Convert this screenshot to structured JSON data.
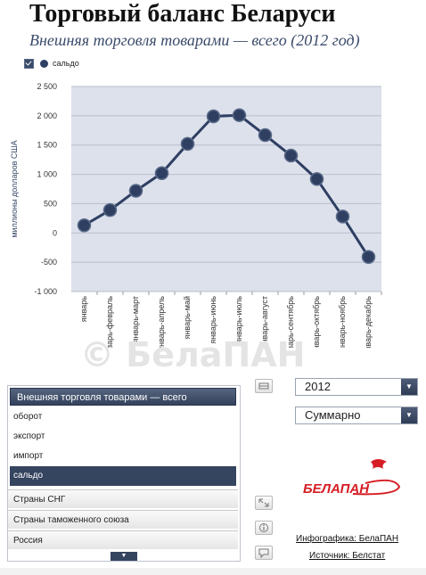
{
  "title": "Торговый баланс Беларуси",
  "subtitle": "Внешняя торговля товарами — всего (2012 год)",
  "legend": {
    "label": "сальдо",
    "checked": true
  },
  "chart_data": {
    "type": "line",
    "ylabel": "миллионы долларов США",
    "ylim": [
      -1000,
      2500
    ],
    "y_ticks": [
      2500,
      2000,
      1500,
      1000,
      500,
      0,
      -500,
      -1000
    ],
    "y_tick_labels": [
      "2 500",
      "2 000",
      "1 500",
      "1 000",
      "500",
      "0",
      "-500",
      "-1 000"
    ],
    "categories": [
      "январь",
      "январь-февраль",
      "январь-март",
      "январь-апрель",
      "январь-май",
      "январь-июнь",
      "январь-июль",
      "январь-август",
      "январь-сентябрь",
      "январь-октябрь",
      "январь-ноябрь",
      "январь-декабрь"
    ],
    "series": [
      {
        "name": "сальдо",
        "values": [
          130,
          390,
          720,
          1020,
          1520,
          1990,
          2010,
          1670,
          1320,
          920,
          280,
          -410
        ]
      }
    ],
    "grid": true,
    "colors": {
      "line": "#2e3f62",
      "marker": "#2e3f62",
      "plot_bg": "#dde1ec",
      "grid": "#b8bdcc"
    }
  },
  "watermark": "© БелаПАН",
  "indicator_panel": {
    "header": "Внешняя торговля товарами — всего",
    "options": [
      "оборот",
      "экспорт",
      "импорт",
      "сальдо"
    ],
    "selected": "сальдо",
    "groups": [
      "Страны СНГ",
      "Страны таможенного союза",
      "Россия"
    ],
    "more_icon": "▼"
  },
  "controls": {
    "year_select": {
      "value": "2012"
    },
    "mode_select": {
      "value": "Суммарно"
    },
    "dropdown_icon": "▼"
  },
  "logo": {
    "text": "БЕЛАПАН"
  },
  "credits": {
    "infographic": "Инфографика: БелаПАН",
    "source": "Источник: Белстат"
  }
}
